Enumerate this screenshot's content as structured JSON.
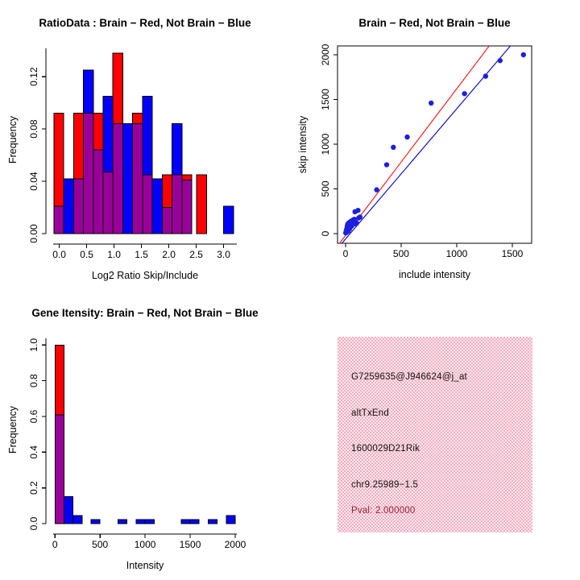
{
  "colors": {
    "background": "#ffffff",
    "hist_red": "#ff0000",
    "hist_blue": "#0000ff",
    "overlap_purple": "#990099",
    "bar_border": "#000000",
    "axis_black": "#000000",
    "scatter_point_blue": "#1e1edc",
    "line_red": "#ee1111",
    "line_blue": "#0000b4",
    "info_box_pink": "#f2aec2",
    "pval_text": "#9b2232"
  },
  "chart_data": [
    {
      "panel": "top-left",
      "type": "bar",
      "subtype": "overlaid-histograms",
      "title": "RatioData : Brain − Red, Not Brain − Blue",
      "xlabel": "Log2 Ratio Skip/Include",
      "ylabel": "Frequency",
      "legend": [
        {
          "name": "Brain",
          "color_key": "hist_red"
        },
        {
          "name": "Not Brain",
          "color_key": "hist_blue"
        },
        {
          "name": "Overlap",
          "color_key": "overlap_purple"
        }
      ],
      "xlim": [
        -0.2,
        3.33
      ],
      "ylim": [
        0,
        0.1435
      ],
      "grid": false,
      "xticks": {
        "values": [
          0,
          0.5,
          1,
          1.5,
          2,
          2.5,
          3
        ],
        "labels": [
          "0.0",
          "0.5",
          "1.0",
          "1.5",
          "2.0",
          "2.5",
          "3.0"
        ]
      },
      "yticks": {
        "values": [
          0,
          0.04,
          0.08,
          0.12
        ],
        "labels": [
          "0.00",
          "0.04",
          "0.08",
          "0.12"
        ]
      },
      "bin_width": 0.18,
      "bars": [
        {
          "x": -0.1,
          "red": 0.092,
          "blue": 0.021
        },
        {
          "x": 0.08,
          "red": 0,
          "blue": 0.042
        },
        {
          "x": 0.26,
          "red": 0.092,
          "blue": 0.042
        },
        {
          "x": 0.44,
          "red": 0.092,
          "blue": 0.125
        },
        {
          "x": 0.62,
          "red": 0.092,
          "blue": 0.064
        },
        {
          "x": 0.8,
          "red": 0.047,
          "blue": 0.105
        },
        {
          "x": 0.98,
          "red": 0.138,
          "blue": 0.084
        },
        {
          "x": 1.16,
          "red": 0,
          "blue": 0.084
        },
        {
          "x": 1.34,
          "red": 0.092,
          "blue": 0.084
        },
        {
          "x": 1.52,
          "red": 0.045,
          "blue": 0.105
        },
        {
          "x": 1.7,
          "red": 0,
          "blue": 0.042
        },
        {
          "x": 1.88,
          "red": 0.045,
          "blue": 0.02
        },
        {
          "x": 2.06,
          "red": 0.045,
          "blue": 0.084
        },
        {
          "x": 2.24,
          "red": 0.045,
          "blue": 0.041
        },
        {
          "x": 2.51,
          "red": 0.045,
          "blue": 0
        },
        {
          "x": 3.0,
          "red": 0,
          "blue": 0.021
        }
      ]
    },
    {
      "panel": "top-right",
      "type": "scatter",
      "title": "Brain − Red, Not Brain − Blue",
      "xlabel": "include intensity",
      "ylabel": "skip intensity",
      "xlim": [
        -72,
        1674
      ],
      "ylim": [
        -108,
        2099
      ],
      "grid": false,
      "box": true,
      "xticks": {
        "values": [
          0,
          500,
          1000,
          1500
        ],
        "labels": [
          "0",
          "500",
          "1000",
          "1500"
        ]
      },
      "yticks": {
        "values": [
          0,
          500,
          1000,
          1500,
          2000
        ],
        "labels": [
          "0",
          "500",
          "1000",
          "1500",
          "2000"
        ]
      },
      "point_radius": 3.2,
      "points": [
        [
          2,
          8
        ],
        [
          5,
          20
        ],
        [
          8,
          40
        ],
        [
          10,
          15
        ],
        [
          12,
          55
        ],
        [
          15,
          30
        ],
        [
          15,
          75
        ],
        [
          18,
          95
        ],
        [
          20,
          50
        ],
        [
          22,
          110
        ],
        [
          25,
          65
        ],
        [
          25,
          30
        ],
        [
          28,
          90
        ],
        [
          30,
          120
        ],
        [
          33,
          75
        ],
        [
          35,
          105
        ],
        [
          38,
          55
        ],
        [
          40,
          130
        ],
        [
          45,
          95
        ],
        [
          48,
          115
        ],
        [
          52,
          140
        ],
        [
          55,
          85
        ],
        [
          60,
          105
        ],
        [
          65,
          150
        ],
        [
          70,
          125
        ],
        [
          78,
          160
        ],
        [
          85,
          245
        ],
        [
          90,
          110
        ],
        [
          100,
          118
        ],
        [
          112,
          260
        ],
        [
          118,
          175
        ],
        [
          130,
          185
        ],
        [
          280,
          490
        ],
        [
          370,
          770
        ],
        [
          430,
          965
        ],
        [
          555,
          1080
        ],
        [
          770,
          1460
        ],
        [
          1070,
          1565
        ],
        [
          1260,
          1760
        ],
        [
          1390,
          1935
        ],
        [
          1600,
          2000
        ]
      ],
      "lines": [
        {
          "name": "brain-fit",
          "color_key": "line_red",
          "slope": 1.64,
          "intercept": -20
        },
        {
          "name": "not-brain-fit",
          "color_key": "line_blue",
          "slope": 1.456,
          "intercept": -60
        }
      ]
    },
    {
      "panel": "bottom-left",
      "type": "bar",
      "subtype": "overlaid-histograms",
      "title": "Gene Itensity: Brain − Red, Not Brain − Blue",
      "xlabel": "Intensity",
      "ylabel": "Frequency",
      "xlim": [
        -74,
        2072
      ],
      "ylim": [
        0,
        1.051
      ],
      "grid": false,
      "xticks": {
        "values": [
          0,
          500,
          1000,
          1500,
          2000
        ],
        "labels": [
          "0",
          "500",
          "1000",
          "1500",
          "2000"
        ]
      },
      "yticks": {
        "values": [
          0,
          0.2,
          0.4,
          0.6,
          0.8,
          1.0
        ],
        "labels": [
          "0.0",
          "0.2",
          "0.4",
          "0.6",
          "0.8",
          "1.0"
        ]
      },
      "bin_width": 100,
      "bars": [
        {
          "x": 0,
          "red": 1.0,
          "blue": 0.61
        },
        {
          "x": 100,
          "red": 0,
          "blue": 0.15
        },
        {
          "x": 200,
          "red": 0,
          "blue": 0.045
        },
        {
          "x": 400,
          "red": 0,
          "blue": 0.022
        },
        {
          "x": 700,
          "red": 0,
          "blue": 0.022
        },
        {
          "x": 900,
          "red": 0,
          "blue": 0.022
        },
        {
          "x": 1000,
          "red": 0,
          "blue": 0.022
        },
        {
          "x": 1400,
          "red": 0,
          "blue": 0.022
        },
        {
          "x": 1500,
          "red": 0,
          "blue": 0.022
        },
        {
          "x": 1700,
          "red": 0,
          "blue": 0.022
        },
        {
          "x": 1900,
          "red": 0,
          "blue": 0.045
        }
      ]
    },
    {
      "panel": "bottom-right",
      "type": "table",
      "subtype": "info-box",
      "lines": [
        {
          "text": "G7259635@J946624@j_at"
        },
        {
          "text": "altTxEnd"
        },
        {
          "text": "1600029D21Rik"
        },
        {
          "text": "chr9.25989−1.5"
        },
        {
          "text": "Pval: 2.000000",
          "color_key": "pval_text"
        }
      ]
    }
  ]
}
